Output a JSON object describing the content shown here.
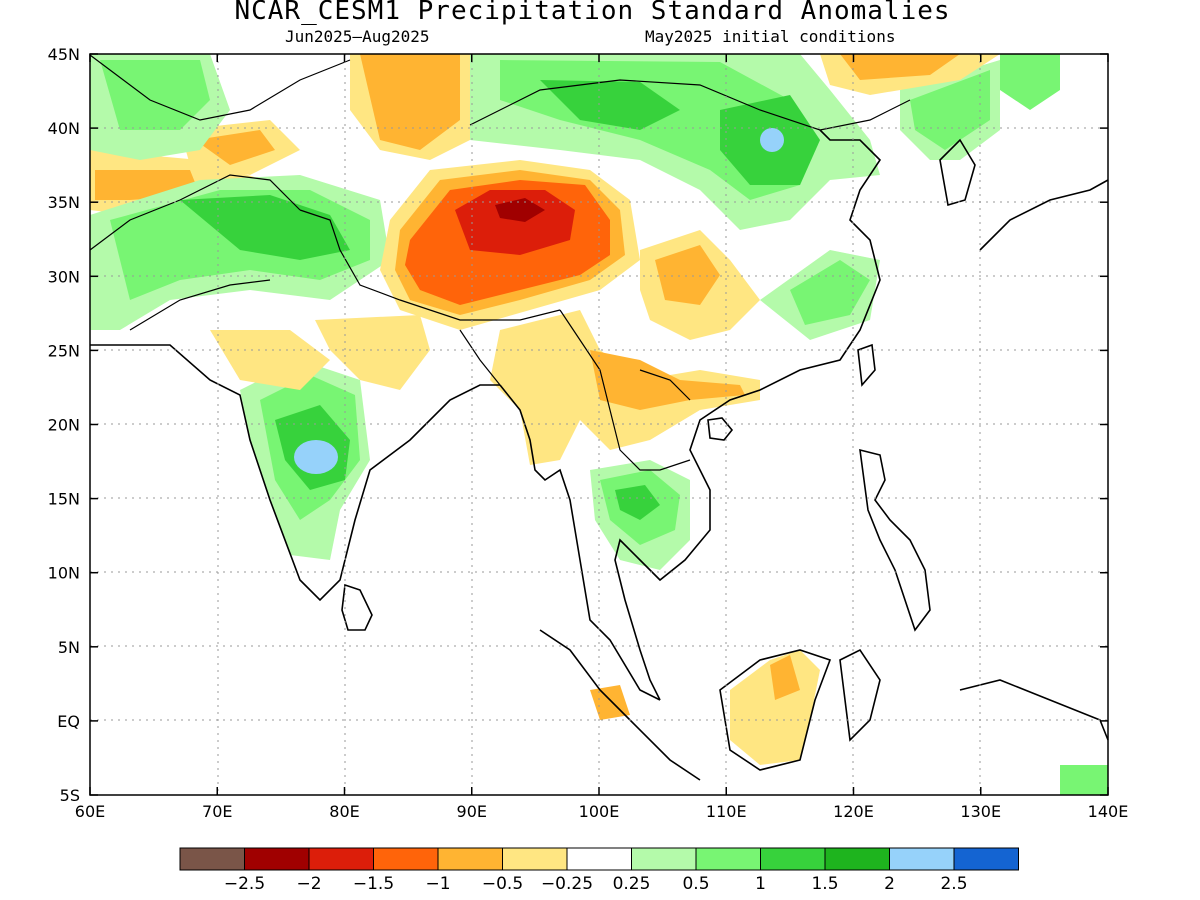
{
  "title": "NCAR_CESM1 Precipitation Standard Anomalies",
  "subtitle_left": "Jun2025–Aug2025",
  "subtitle_right": "May2025 initial conditions",
  "x_ticks": [
    "60E",
    "70E",
    "80E",
    "90E",
    "100E",
    "110E",
    "120E",
    "130E",
    "140E"
  ],
  "y_ticks": [
    "45N",
    "40N",
    "35N",
    "30N",
    "25N",
    "20N",
    "15N",
    "10N",
    "5N",
    "EQ",
    "5S"
  ],
  "colorbar": {
    "colors": [
      "#7a5548",
      "#a00000",
      "#dc1e0a",
      "#ff640a",
      "#ffb432",
      "#ffe682",
      "#ffffff",
      "#b4faaa",
      "#78f573",
      "#37d23c",
      "#1eb41e",
      "#96d2fa",
      "#1464d2"
    ],
    "labels": [
      "−2.5",
      "−2",
      "−1.5",
      "−1",
      "−0.5",
      "−0.25",
      "0.25",
      "0.5",
      "1",
      "1.5",
      "2",
      "2.5"
    ]
  }
}
